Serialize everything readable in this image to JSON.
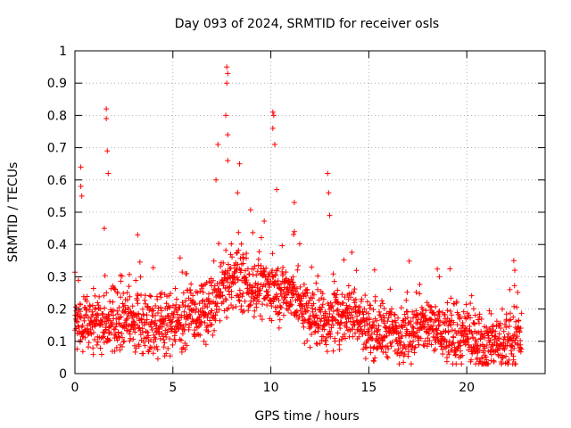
{
  "chart_data": {
    "type": "scatter",
    "title": "Day 093 of 2024, SRMTID for receiver osls",
    "xlabel": "GPS time / hours",
    "ylabel": "SRMTID / TECUs",
    "xlim": [
      0,
      24
    ],
    "ylim": [
      0,
      1
    ],
    "xticks": [
      0,
      5,
      10,
      15,
      20
    ],
    "yticks": [
      0,
      0.1,
      0.2,
      0.3,
      0.4,
      0.5,
      0.6,
      0.7,
      0.8,
      0.9,
      1
    ],
    "xtick_labels": [
      "0",
      "5",
      "10",
      "15",
      "20"
    ],
    "ytick_labels": [
      "0",
      "0.1",
      "0.2",
      "0.3",
      "0.4",
      "0.5",
      "0.6",
      "0.7",
      "0.8",
      "0.9",
      "1"
    ],
    "grid": true,
    "marker": "+",
    "series_color": "#ff0000",
    "series": [
      {
        "name": "SRMTID",
        "approx_points": 2000,
        "x_range": [
          0,
          22.8
        ],
        "baseline_profile": [
          {
            "x": 0.0,
            "y": 0.15
          },
          {
            "x": 1.0,
            "y": 0.16
          },
          {
            "x": 2.0,
            "y": 0.15
          },
          {
            "x": 3.0,
            "y": 0.16
          },
          {
            "x": 4.0,
            "y": 0.15
          },
          {
            "x": 5.0,
            "y": 0.16
          },
          {
            "x": 6.0,
            "y": 0.18
          },
          {
            "x": 7.0,
            "y": 0.2
          },
          {
            "x": 8.0,
            "y": 0.3
          },
          {
            "x": 9.0,
            "y": 0.27
          },
          {
            "x": 10.0,
            "y": 0.26
          },
          {
            "x": 11.0,
            "y": 0.25
          },
          {
            "x": 12.0,
            "y": 0.18
          },
          {
            "x": 13.0,
            "y": 0.16
          },
          {
            "x": 14.0,
            "y": 0.2
          },
          {
            "x": 15.0,
            "y": 0.14
          },
          {
            "x": 16.0,
            "y": 0.13
          },
          {
            "x": 17.0,
            "y": 0.13
          },
          {
            "x": 18.0,
            "y": 0.15
          },
          {
            "x": 19.0,
            "y": 0.12
          },
          {
            "x": 20.0,
            "y": 0.11
          },
          {
            "x": 21.0,
            "y": 0.1
          },
          {
            "x": 22.0,
            "y": 0.09
          },
          {
            "x": 22.8,
            "y": 0.12
          }
        ],
        "peaks": [
          {
            "x": 0.3,
            "y": 0.64
          },
          {
            "x": 0.3,
            "y": 0.58
          },
          {
            "x": 0.35,
            "y": 0.55
          },
          {
            "x": 1.6,
            "y": 0.82
          },
          {
            "x": 1.6,
            "y": 0.79
          },
          {
            "x": 1.65,
            "y": 0.69
          },
          {
            "x": 1.7,
            "y": 0.62
          },
          {
            "x": 1.5,
            "y": 0.45
          },
          {
            "x": 3.2,
            "y": 0.43
          },
          {
            "x": 7.3,
            "y": 0.71
          },
          {
            "x": 7.2,
            "y": 0.6
          },
          {
            "x": 7.75,
            "y": 0.95
          },
          {
            "x": 7.8,
            "y": 0.93
          },
          {
            "x": 7.75,
            "y": 0.9
          },
          {
            "x": 7.7,
            "y": 0.8
          },
          {
            "x": 7.8,
            "y": 0.74
          },
          {
            "x": 7.8,
            "y": 0.66
          },
          {
            "x": 8.4,
            "y": 0.65
          },
          {
            "x": 8.3,
            "y": 0.56
          },
          {
            "x": 10.1,
            "y": 0.81
          },
          {
            "x": 10.15,
            "y": 0.8
          },
          {
            "x": 10.1,
            "y": 0.76
          },
          {
            "x": 10.2,
            "y": 0.71
          },
          {
            "x": 10.3,
            "y": 0.57
          },
          {
            "x": 11.2,
            "y": 0.53
          },
          {
            "x": 11.2,
            "y": 0.44
          },
          {
            "x": 12.9,
            "y": 0.62
          },
          {
            "x": 12.95,
            "y": 0.56
          },
          {
            "x": 13.0,
            "y": 0.49
          },
          {
            "x": 18.6,
            "y": 0.3
          },
          {
            "x": 22.4,
            "y": 0.35
          },
          {
            "x": 22.45,
            "y": 0.32
          }
        ]
      }
    ]
  }
}
